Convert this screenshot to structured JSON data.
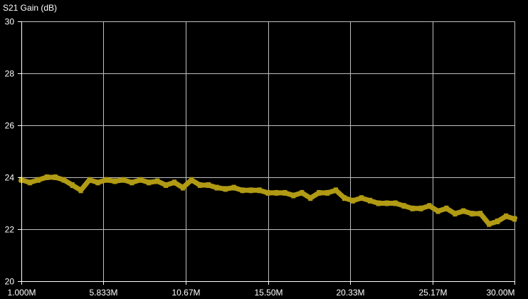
{
  "chart_data": {
    "type": "line",
    "title": "S21 Gain (dB)",
    "xlabel": "",
    "ylabel": "",
    "x_unit": "MHz",
    "xlim": [
      1.0,
      30.0
    ],
    "ylim": [
      20,
      30
    ],
    "grid": true,
    "x_ticks": [
      1.0,
      5.833,
      10.67,
      15.5,
      20.33,
      25.17,
      30.0
    ],
    "x_tick_labels": [
      "1.000M",
      "5.833M",
      "10.67M",
      "15.50M",
      "20.33M",
      "25.17M",
      "30.00M"
    ],
    "y_ticks": [
      20,
      22,
      24,
      26,
      28,
      30
    ],
    "y_tick_labels": [
      "20",
      "22",
      "24",
      "26",
      "28",
      "30"
    ],
    "colors": {
      "background": "#000000",
      "grid": "#bfbfbf",
      "axis": "#ffffff",
      "trace": "#b19a14"
    },
    "series": [
      {
        "x": [
          1.0,
          1.5,
          2.0,
          2.5,
          3.0,
          3.5,
          4.0,
          4.5,
          5.0,
          5.5,
          6.0,
          6.5,
          7.0,
          7.5,
          8.0,
          8.5,
          9.0,
          9.5,
          10.0,
          10.5,
          11.0,
          11.5,
          12.0,
          12.5,
          13.0,
          13.5,
          14.0,
          14.5,
          15.0,
          15.5,
          16.0,
          16.5,
          17.0,
          17.5,
          18.0,
          18.5,
          19.0,
          19.5,
          20.0,
          20.5,
          21.0,
          21.5,
          22.0,
          22.5,
          23.0,
          23.5,
          24.0,
          24.5,
          25.0,
          25.5,
          26.0,
          26.5,
          27.0,
          27.5,
          28.0,
          28.5,
          29.0,
          29.5,
          30.0
        ],
        "values": [
          23.9,
          23.8,
          23.9,
          24.0,
          24.0,
          23.9,
          23.7,
          23.5,
          23.9,
          23.8,
          23.9,
          23.85,
          23.9,
          23.8,
          23.9,
          23.8,
          23.85,
          23.7,
          23.8,
          23.6,
          23.9,
          23.7,
          23.7,
          23.6,
          23.55,
          23.6,
          23.5,
          23.5,
          23.5,
          23.4,
          23.4,
          23.4,
          23.3,
          23.4,
          23.2,
          23.4,
          23.4,
          23.5,
          23.2,
          23.1,
          23.2,
          23.1,
          23.0,
          23.0,
          23.0,
          22.9,
          22.8,
          22.8,
          22.9,
          22.7,
          22.8,
          22.6,
          22.7,
          22.6,
          22.6,
          22.2,
          22.3,
          22.5,
          22.4
        ]
      }
    ]
  }
}
